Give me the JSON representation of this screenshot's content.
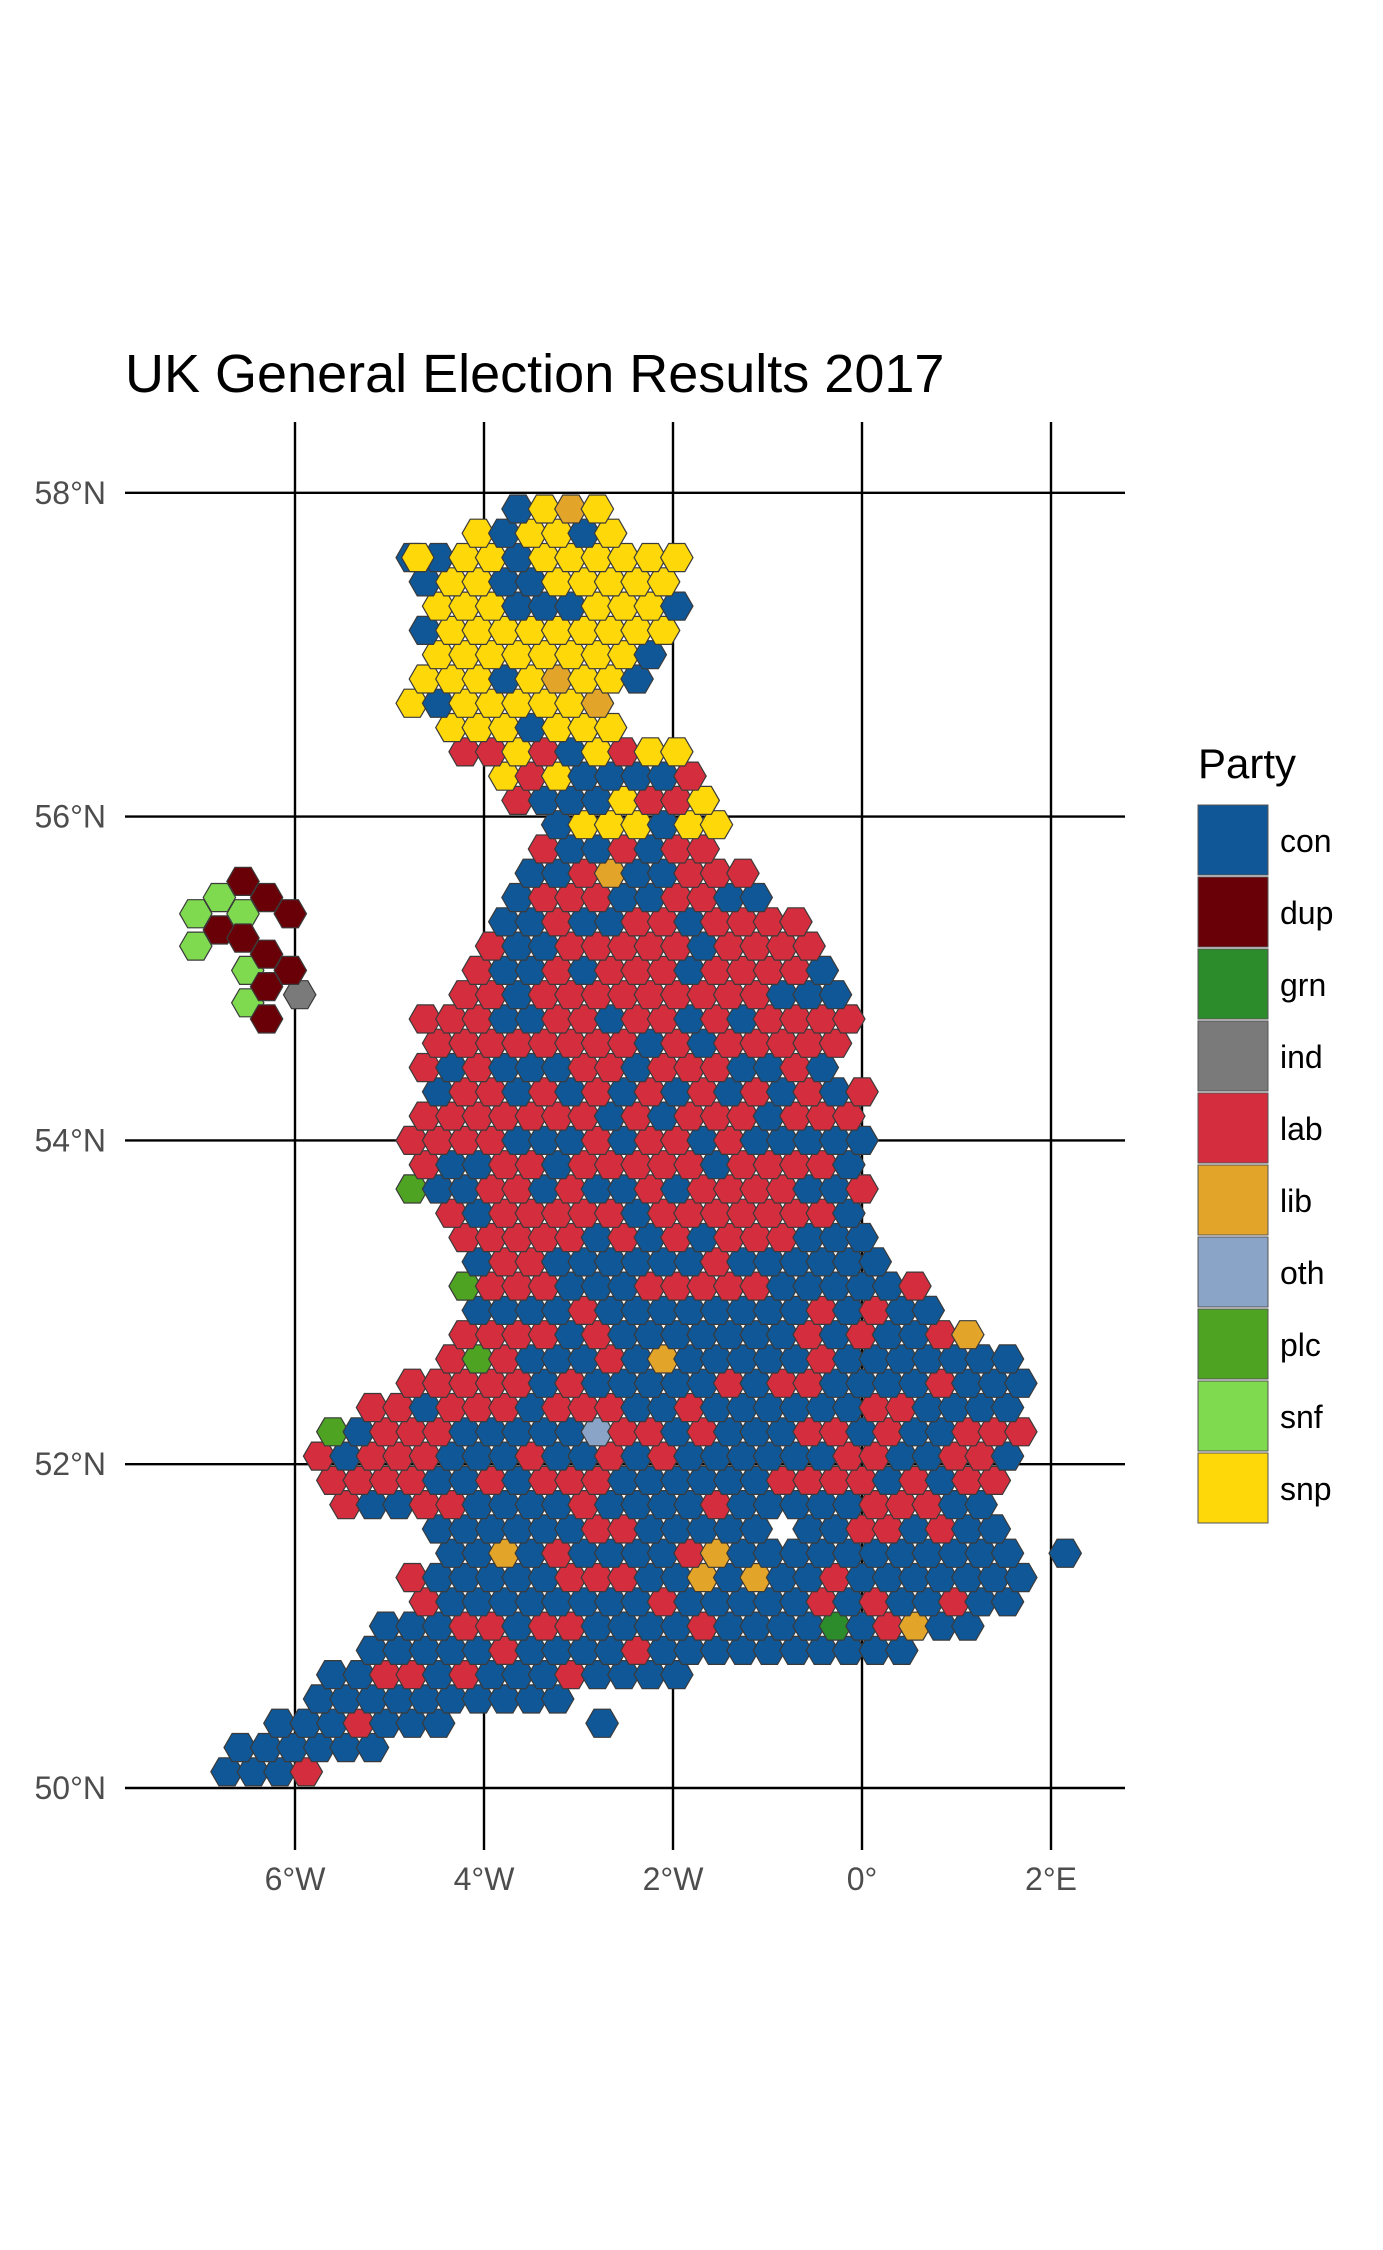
{
  "title": "UK General Election Results 2017",
  "axes": {
    "x_ticks": [
      {
        "value": -6,
        "label": "6°W"
      },
      {
        "value": -4,
        "label": "4°W"
      },
      {
        "value": -2,
        "label": "2°W"
      },
      {
        "value": 0,
        "label": "0°"
      },
      {
        "value": 2,
        "label": "2°E"
      }
    ],
    "y_ticks": [
      {
        "value": 50,
        "label": "50°N"
      },
      {
        "value": 52,
        "label": "52°N"
      },
      {
        "value": 54,
        "label": "54°N"
      },
      {
        "value": 56,
        "label": "56°N"
      },
      {
        "value": 58,
        "label": "58°N"
      }
    ],
    "xlim": [
      -7.7,
      2.8
    ],
    "ylim": [
      49.6,
      58.4
    ],
    "grid": true
  },
  "legend": {
    "title": "Party",
    "placement": "right",
    "items": [
      {
        "key": "con",
        "label": "con",
        "color": "#0f5797"
      },
      {
        "key": "dup",
        "label": "dup",
        "color": "#6a0007"
      },
      {
        "key": "grn",
        "label": "grn",
        "color": "#2c8c2c"
      },
      {
        "key": "ind",
        "label": "ind",
        "color": "#7a7a7a"
      },
      {
        "key": "lab",
        "label": "lab",
        "color": "#d32d3e"
      },
      {
        "key": "lib",
        "label": "lib",
        "color": "#e2a52a"
      },
      {
        "key": "oth",
        "label": "oth",
        "color": "#8aa4c8"
      },
      {
        "key": "plc",
        "label": "plc",
        "color": "#4ea323"
      },
      {
        "key": "snf",
        "label": "snf",
        "color": "#7fda50"
      },
      {
        "key": "snp",
        "label": "snp",
        "color": "#ffd80a"
      }
    ]
  },
  "chart_data": {
    "type": "hexmap",
    "title": "UK General Election Results 2017",
    "xlabel": "",
    "ylabel": "",
    "hex_size_deg": 0.2,
    "special_hexes": [
      {
        "lon": -3.2,
        "lat": 57.85,
        "party": "lib"
      },
      {
        "lon": -3.0,
        "lat": 57.95,
        "party": "lib"
      },
      {
        "lon": -2.9,
        "lat": 56.65,
        "party": "lib"
      },
      {
        "lon": -3.1,
        "lat": 56.85,
        "party": "lib"
      },
      {
        "lon": -2.6,
        "lat": 55.65,
        "party": "lib"
      },
      {
        "lon": -3.85,
        "lat": 51.45,
        "party": "lib"
      },
      {
        "lon": -2.15,
        "lat": 52.6,
        "party": "lib"
      },
      {
        "lon": -1.65,
        "lat": 51.45,
        "party": "lib"
      },
      {
        "lon": -1.6,
        "lat": 51.25,
        "party": "lib"
      },
      {
        "lon": -1.1,
        "lat": 51.25,
        "party": "lib"
      },
      {
        "lon": 0.5,
        "lat": 51.05,
        "party": "lib"
      },
      {
        "lon": 1.05,
        "lat": 52.95,
        "party": "lib"
      },
      {
        "lon": -2.75,
        "lat": 52.2,
        "party": "oth"
      },
      {
        "lon": -0.3,
        "lat": 50.95,
        "party": "grn"
      },
      {
        "lon": -4.15,
        "lat": 53.1,
        "party": "plc"
      },
      {
        "lon": -4.15,
        "lat": 52.7,
        "party": "plc"
      },
      {
        "lon": -4.95,
        "lat": 53.6,
        "party": "plc"
      },
      {
        "lon": -5.5,
        "lat": 52.2,
        "party": "plc"
      },
      {
        "lon": -5.95,
        "lat": 54.9,
        "party": "ind"
      }
    ],
    "ni_hexes": [
      {
        "lon": -7.05,
        "lat": 55.4,
        "party": "snf"
      },
      {
        "lon": -6.8,
        "lat": 55.5,
        "party": "snf"
      },
      {
        "lon": -7.05,
        "lat": 55.2,
        "party": "snf"
      },
      {
        "lon": -6.55,
        "lat": 55.4,
        "party": "snf"
      },
      {
        "lon": -6.5,
        "lat": 55.05,
        "party": "snf"
      },
      {
        "lon": -6.5,
        "lat": 54.85,
        "party": "snf"
      },
      {
        "lon": -6.55,
        "lat": 55.6,
        "party": "dup"
      },
      {
        "lon": -6.3,
        "lat": 55.5,
        "party": "dup"
      },
      {
        "lon": -6.8,
        "lat": 55.3,
        "party": "dup"
      },
      {
        "lon": -6.05,
        "lat": 55.4,
        "party": "dup"
      },
      {
        "lon": -6.3,
        "lat": 55.15,
        "party": "dup"
      },
      {
        "lon": -6.05,
        "lat": 55.05,
        "party": "dup"
      },
      {
        "lon": -6.3,
        "lat": 54.95,
        "party": "dup"
      },
      {
        "lon": -6.3,
        "lat": 54.75,
        "party": "dup"
      },
      {
        "lon": -6.55,
        "lat": 55.25,
        "party": "dup"
      }
    ]
  }
}
